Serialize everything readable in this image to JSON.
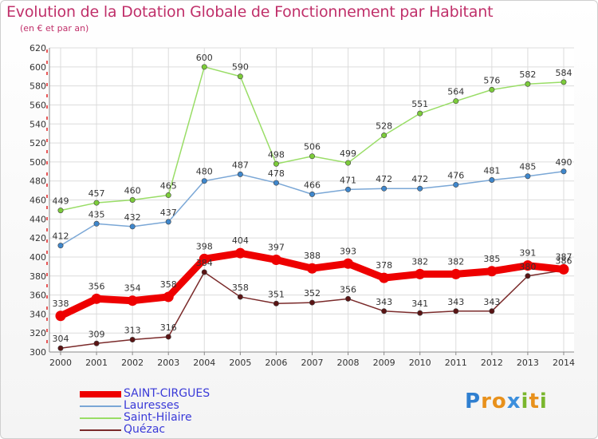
{
  "header": {
    "title": "Evolution de la Dotation Globale de Fonctionnement par Habitant",
    "subtitle": "(en € et par an)"
  },
  "logo": {
    "text": "Proxiti",
    "letters": [
      {
        "ch": "P",
        "color": "#2f7fd0"
      },
      {
        "ch": "r",
        "color": "#e8911c"
      },
      {
        "ch": "o",
        "color": "#e8911c"
      },
      {
        "ch": "x",
        "color": "#3c8fdd"
      },
      {
        "ch": "i",
        "color": "#7ab62d"
      },
      {
        "ch": "t",
        "color": "#e8911c"
      },
      {
        "ch": "i",
        "color": "#7ab62d"
      }
    ]
  },
  "chart_data": {
    "type": "line",
    "title": "Evolution de la Dotation Globale de Fonctionnement par Habitant",
    "subtitle": "(en € et par an)",
    "x": [
      "2000",
      "2001",
      "2002",
      "2003",
      "2004",
      "2005",
      "2006",
      "2007",
      "2008",
      "2009",
      "2010",
      "2011",
      "2012",
      "2013",
      "2014"
    ],
    "ylim": [
      300,
      620
    ],
    "yticks": [
      300,
      320,
      340,
      360,
      380,
      400,
      420,
      440,
      460,
      480,
      500,
      520,
      540,
      560,
      580,
      600,
      620
    ],
    "grid": true,
    "legend_position": "bottom-left",
    "series": [
      {
        "name": "SAINT-CIRGUES",
        "color": "#ee0000",
        "point_color": "#ee0000",
        "width": 9,
        "values": [
          338,
          356,
          354,
          358,
          398,
          404,
          397,
          388,
          393,
          378,
          382,
          382,
          385,
          391,
          387
        ]
      },
      {
        "name": "Lauresses",
        "color": "#7aa7d6",
        "point_color": "#3f87cc",
        "width": 1.5,
        "values": [
          412,
          435,
          432,
          437,
          480,
          487,
          478,
          466,
          471,
          472,
          472,
          476,
          481,
          485,
          490
        ]
      },
      {
        "name": "Saint-Hilaire",
        "color": "#99dd66",
        "point_color": "#7ccc3a",
        "width": 1.5,
        "values": [
          449,
          457,
          460,
          465,
          600,
          590,
          498,
          506,
          499,
          528,
          551,
          564,
          576,
          582,
          584
        ]
      },
      {
        "name": "Quézac",
        "color": "#7a2a2a",
        "point_color": "#5a1414",
        "width": 1.5,
        "values": [
          304,
          309,
          313,
          316,
          384,
          358,
          351,
          352,
          356,
          343,
          341,
          343,
          343,
          380,
          386
        ]
      }
    ]
  }
}
